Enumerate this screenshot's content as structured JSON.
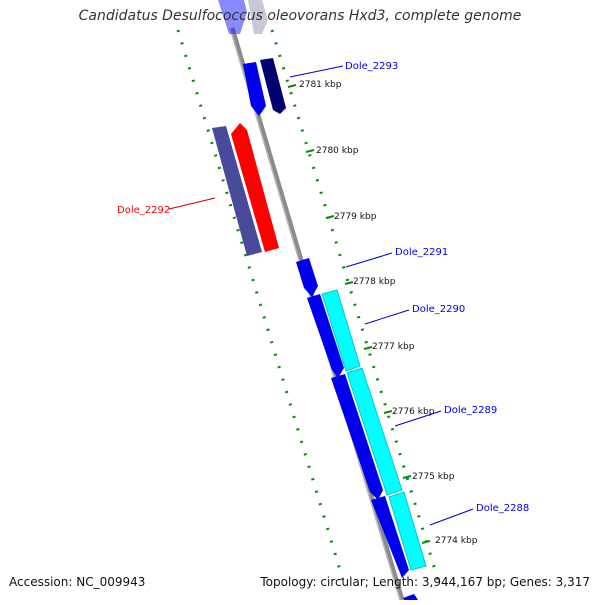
{
  "title": "Candidatus Desulfococcus oleovorans Hxd3, complete genome",
  "accession": "Accession: NC_009943",
  "summary": "Topology: circular; Length: 3,944,167 bp; Genes: 3,317",
  "ticks": [
    {
      "label": "2781 kbp"
    },
    {
      "label": "2780 kbp"
    },
    {
      "label": "2779 kbp"
    },
    {
      "label": "2778 kbp"
    },
    {
      "label": "2777 kbp"
    },
    {
      "label": "2776 kbp"
    },
    {
      "label": "2775 kbp"
    },
    {
      "label": "2774 kbp"
    }
  ],
  "genes": [
    {
      "label": "Dole_2293",
      "strand": "forward",
      "color": "#0000ee"
    },
    {
      "label": "Dole_2292",
      "strand": "reverse",
      "color": "#ee0000"
    },
    {
      "label": "Dole_2291",
      "strand": "forward",
      "color": "#0000ee"
    },
    {
      "label": "Dole_2290",
      "strand": "forward",
      "color": "#0000ee"
    },
    {
      "label": "Dole_2289",
      "strand": "forward",
      "color": "#0000ee"
    },
    {
      "label": "Dole_2288",
      "strand": "forward",
      "color": "#0000ee"
    }
  ],
  "colors": {
    "cds_forward": "#0000ff",
    "cds_reverse": "#ff0000",
    "feature_cyan": "#00ffff",
    "feature_navy": "#000080",
    "feature_slate": "#4a4aa0",
    "backbone": "#888888",
    "tick": "#007700"
  }
}
